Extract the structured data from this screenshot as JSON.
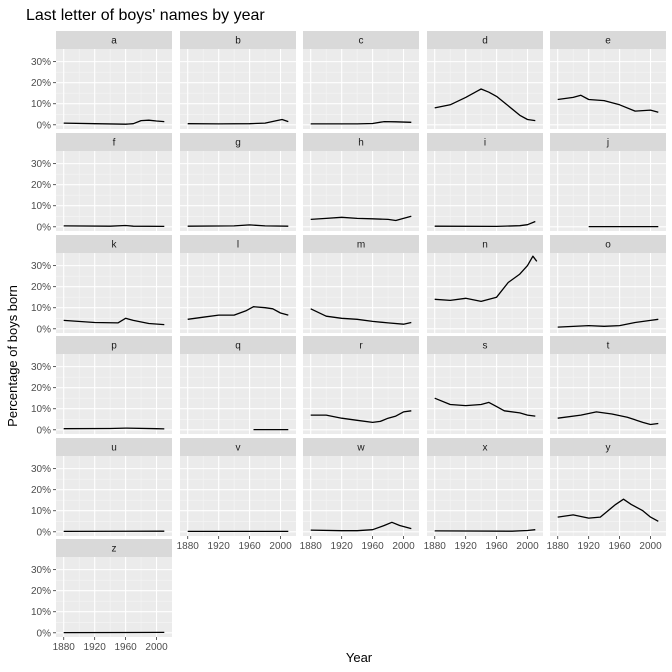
{
  "chart_data": {
    "type": "line",
    "title": "Last letter of boys' names by year",
    "xlabel": "Year",
    "ylabel": "Percentage of boys born",
    "xlim": [
      1870,
      2020
    ],
    "ylim": [
      -0.02,
      0.36
    ],
    "x_ticks": [
      1880,
      1920,
      1960,
      2000
    ],
    "y_ticks": [
      0,
      0.1,
      0.2,
      0.3
    ],
    "y_tick_labels": [
      "0%",
      "10%",
      "20%",
      "30%"
    ],
    "grid": true,
    "facet_ncol": 5,
    "panels": [
      {
        "letter": "a",
        "points": [
          [
            1880,
            0.008
          ],
          [
            1920,
            0.005
          ],
          [
            1960,
            0.003
          ],
          [
            1970,
            0.005
          ],
          [
            1980,
            0.02
          ],
          [
            1990,
            0.022
          ],
          [
            2000,
            0.018
          ],
          [
            2010,
            0.015
          ]
        ]
      },
      {
        "letter": "b",
        "points": [
          [
            1880,
            0.005
          ],
          [
            1920,
            0.004
          ],
          [
            1960,
            0.005
          ],
          [
            1980,
            0.008
          ],
          [
            1995,
            0.02
          ],
          [
            2002,
            0.025
          ],
          [
            2010,
            0.015
          ]
        ]
      },
      {
        "letter": "c",
        "points": [
          [
            1880,
            0.004
          ],
          [
            1940,
            0.004
          ],
          [
            1960,
            0.006
          ],
          [
            1975,
            0.015
          ],
          [
            1990,
            0.014
          ],
          [
            2010,
            0.012
          ]
        ]
      },
      {
        "letter": "d",
        "points": [
          [
            1880,
            0.08
          ],
          [
            1900,
            0.095
          ],
          [
            1920,
            0.13
          ],
          [
            1935,
            0.16
          ],
          [
            1940,
            0.17
          ],
          [
            1950,
            0.155
          ],
          [
            1960,
            0.135
          ],
          [
            1975,
            0.09
          ],
          [
            1990,
            0.045
          ],
          [
            2000,
            0.025
          ],
          [
            2010,
            0.02
          ]
        ]
      },
      {
        "letter": "e",
        "points": [
          [
            1880,
            0.12
          ],
          [
            1900,
            0.13
          ],
          [
            1910,
            0.14
          ],
          [
            1920,
            0.12
          ],
          [
            1940,
            0.115
          ],
          [
            1960,
            0.095
          ],
          [
            1980,
            0.065
          ],
          [
            2000,
            0.07
          ],
          [
            2010,
            0.06
          ]
        ]
      },
      {
        "letter": "f",
        "points": [
          [
            1880,
            0.004
          ],
          [
            1940,
            0.003
          ],
          [
            1960,
            0.006
          ],
          [
            1970,
            0.003
          ],
          [
            2010,
            0.002
          ]
        ]
      },
      {
        "letter": "g",
        "points": [
          [
            1880,
            0.003
          ],
          [
            1940,
            0.004
          ],
          [
            1960,
            0.009
          ],
          [
            1980,
            0.004
          ],
          [
            2010,
            0.003
          ]
        ]
      },
      {
        "letter": "h",
        "points": [
          [
            1880,
            0.035
          ],
          [
            1900,
            0.04
          ],
          [
            1920,
            0.045
          ],
          [
            1940,
            0.04
          ],
          [
            1960,
            0.038
          ],
          [
            1980,
            0.035
          ],
          [
            1990,
            0.03
          ],
          [
            2000,
            0.04
          ],
          [
            2010,
            0.05
          ]
        ]
      },
      {
        "letter": "i",
        "points": [
          [
            1880,
            0.003
          ],
          [
            1960,
            0.002
          ],
          [
            1990,
            0.005
          ],
          [
            2000,
            0.01
          ],
          [
            2010,
            0.025
          ]
        ]
      },
      {
        "letter": "j",
        "points": [
          [
            1920,
            0.001
          ],
          [
            2010,
            0.001
          ]
        ]
      },
      {
        "letter": "k",
        "points": [
          [
            1880,
            0.04
          ],
          [
            1920,
            0.03
          ],
          [
            1950,
            0.028
          ],
          [
            1960,
            0.05
          ],
          [
            1970,
            0.04
          ],
          [
            1990,
            0.025
          ],
          [
            2010,
            0.02
          ]
        ]
      },
      {
        "letter": "l",
        "points": [
          [
            1880,
            0.045
          ],
          [
            1900,
            0.055
          ],
          [
            1920,
            0.065
          ],
          [
            1940,
            0.065
          ],
          [
            1955,
            0.085
          ],
          [
            1965,
            0.105
          ],
          [
            1980,
            0.1
          ],
          [
            1990,
            0.095
          ],
          [
            2000,
            0.075
          ],
          [
            2010,
            0.065
          ]
        ]
      },
      {
        "letter": "m",
        "points": [
          [
            1880,
            0.095
          ],
          [
            1900,
            0.06
          ],
          [
            1920,
            0.05
          ],
          [
            1940,
            0.045
          ],
          [
            1960,
            0.035
          ],
          [
            1980,
            0.028
          ],
          [
            2000,
            0.022
          ],
          [
            2010,
            0.03
          ]
        ]
      },
      {
        "letter": "n",
        "points": [
          [
            1880,
            0.14
          ],
          [
            1900,
            0.135
          ],
          [
            1920,
            0.145
          ],
          [
            1940,
            0.13
          ],
          [
            1960,
            0.15
          ],
          [
            1975,
            0.22
          ],
          [
            1990,
            0.26
          ],
          [
            2000,
            0.3
          ],
          [
            2007,
            0.345
          ],
          [
            2012,
            0.32
          ]
        ]
      },
      {
        "letter": "o",
        "points": [
          [
            1880,
            0.008
          ],
          [
            1920,
            0.015
          ],
          [
            1940,
            0.012
          ],
          [
            1960,
            0.015
          ],
          [
            1980,
            0.03
          ],
          [
            2000,
            0.04
          ],
          [
            2010,
            0.045
          ]
        ]
      },
      {
        "letter": "p",
        "points": [
          [
            1880,
            0.005
          ],
          [
            1940,
            0.006
          ],
          [
            1960,
            0.008
          ],
          [
            2000,
            0.005
          ],
          [
            2010,
            0.004
          ]
        ]
      },
      {
        "letter": "q",
        "points": [
          [
            1965,
            0.001
          ],
          [
            2010,
            0.001
          ]
        ]
      },
      {
        "letter": "r",
        "points": [
          [
            1880,
            0.07
          ],
          [
            1900,
            0.07
          ],
          [
            1920,
            0.055
          ],
          [
            1940,
            0.045
          ],
          [
            1960,
            0.035
          ],
          [
            1970,
            0.04
          ],
          [
            1980,
            0.055
          ],
          [
            1990,
            0.065
          ],
          [
            2000,
            0.085
          ],
          [
            2010,
            0.09
          ]
        ]
      },
      {
        "letter": "s",
        "points": [
          [
            1880,
            0.15
          ],
          [
            1900,
            0.12
          ],
          [
            1920,
            0.115
          ],
          [
            1940,
            0.12
          ],
          [
            1950,
            0.13
          ],
          [
            1960,
            0.11
          ],
          [
            1970,
            0.09
          ],
          [
            1990,
            0.08
          ],
          [
            2000,
            0.07
          ],
          [
            2010,
            0.065
          ]
        ]
      },
      {
        "letter": "t",
        "points": [
          [
            1880,
            0.055
          ],
          [
            1910,
            0.07
          ],
          [
            1930,
            0.085
          ],
          [
            1950,
            0.075
          ],
          [
            1970,
            0.06
          ],
          [
            1990,
            0.035
          ],
          [
            2000,
            0.025
          ],
          [
            2010,
            0.03
          ]
        ]
      },
      {
        "letter": "u",
        "points": [
          [
            1880,
            0.002
          ],
          [
            2010,
            0.003
          ]
        ]
      },
      {
        "letter": "v",
        "points": [
          [
            1880,
            0.002
          ],
          [
            2010,
            0.002
          ]
        ]
      },
      {
        "letter": "w",
        "points": [
          [
            1880,
            0.008
          ],
          [
            1920,
            0.005
          ],
          [
            1940,
            0.005
          ],
          [
            1960,
            0.01
          ],
          [
            1975,
            0.03
          ],
          [
            1985,
            0.045
          ],
          [
            1995,
            0.03
          ],
          [
            2010,
            0.015
          ]
        ]
      },
      {
        "letter": "x",
        "points": [
          [
            1880,
            0.004
          ],
          [
            1980,
            0.003
          ],
          [
            2000,
            0.006
          ],
          [
            2010,
            0.01
          ]
        ]
      },
      {
        "letter": "y",
        "points": [
          [
            1880,
            0.07
          ],
          [
            1900,
            0.08
          ],
          [
            1920,
            0.065
          ],
          [
            1935,
            0.07
          ],
          [
            1945,
            0.1
          ],
          [
            1955,
            0.13
          ],
          [
            1965,
            0.155
          ],
          [
            1975,
            0.13
          ],
          [
            1990,
            0.1
          ],
          [
            2000,
            0.07
          ],
          [
            2010,
            0.05
          ]
        ]
      },
      {
        "letter": "z",
        "points": [
          [
            1880,
            0.001
          ],
          [
            2010,
            0.002
          ]
        ]
      }
    ]
  }
}
